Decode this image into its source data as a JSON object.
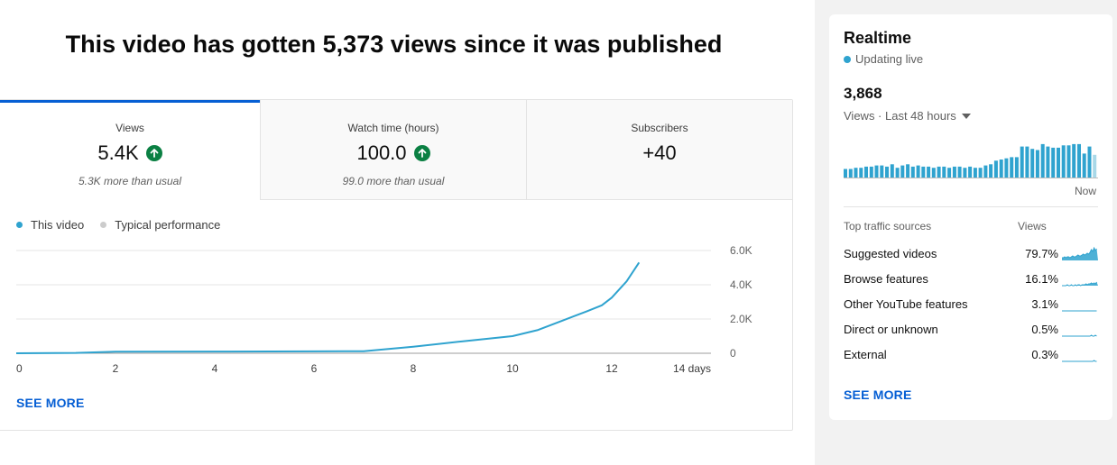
{
  "headline": "This video has gotten 5,373 views since it was published",
  "tabs": [
    {
      "label": "Views",
      "value": "5.4K",
      "sub": "5.3K more than usual",
      "trend": "up"
    },
    {
      "label": "Watch time (hours)",
      "value": "100.0",
      "sub": "99.0 more than usual",
      "trend": "up"
    },
    {
      "label": "Subscribers",
      "value": "+40",
      "sub": "",
      "trend": "none"
    }
  ],
  "legend": {
    "this_video": "This video",
    "typical": "Typical performance"
  },
  "colors": {
    "accent": "#065fd4",
    "series": "#2fa3cf",
    "typical": "#cccccc",
    "up": "#0b8043"
  },
  "chart_data": {
    "type": "line",
    "title": "",
    "xlabel": "",
    "ylabel": "",
    "x_ticks": [
      "0",
      "2",
      "4",
      "6",
      "8",
      "10",
      "12",
      "14 days"
    ],
    "y_ticks": [
      "6.0K",
      "4.0K",
      "2.0K",
      "0"
    ],
    "xlim": [
      0,
      14
    ],
    "ylim": [
      0,
      6000
    ],
    "grid": true,
    "legend_position": "top-left",
    "series": [
      {
        "name": "This video",
        "x": [
          0,
          1.2,
          2,
          4,
          6,
          7,
          8,
          9,
          10,
          10.5,
          11,
          11.5,
          11.8,
          12,
          12.3,
          12.55
        ],
        "y": [
          0,
          20,
          90,
          100,
          110,
          120,
          380,
          700,
          1000,
          1350,
          1900,
          2450,
          2800,
          3250,
          4200,
          5300
        ]
      }
    ]
  },
  "see_more": "SEE MORE",
  "realtime": {
    "title": "Realtime",
    "status": "Updating live",
    "count": "3,868",
    "range_label": "Views · Last 48 hours",
    "now_label": "Now",
    "bars": [
      8,
      8,
      9,
      9,
      10,
      10,
      11,
      11,
      10,
      12,
      9,
      11,
      12,
      10,
      11,
      10,
      10,
      9,
      10,
      10,
      9,
      10,
      10,
      9,
      10,
      9,
      9,
      11,
      12,
      15,
      16,
      17,
      18,
      18,
      27,
      27,
      25,
      24,
      29,
      27,
      26,
      26,
      28,
      28,
      29,
      29,
      21,
      27,
      20
    ],
    "table_headers": {
      "source": "Top traffic sources",
      "views": "Views"
    },
    "sources": [
      {
        "name": "Suggested videos",
        "pct": "79.7%",
        "spark": [
          3,
          3,
          4,
          3,
          4,
          4,
          3,
          4,
          5,
          4,
          4,
          5,
          6,
          5,
          5,
          6,
          7,
          6,
          7,
          8,
          7,
          9,
          12,
          10,
          14,
          11,
          13
        ]
      },
      {
        "name": "Browse features",
        "pct": "16.1%",
        "spark": [
          0,
          0,
          0,
          0,
          1,
          0,
          0,
          1,
          0,
          0,
          1,
          0,
          1,
          1,
          0,
          1,
          1,
          1,
          2,
          1,
          2,
          2,
          3,
          2,
          3,
          2,
          4
        ]
      },
      {
        "name": "Other YouTube features",
        "pct": "3.1%",
        "spark": [
          0,
          0,
          0,
          0,
          0,
          0,
          0,
          0,
          0,
          0,
          0,
          0,
          0,
          0,
          0,
          0,
          0,
          0,
          0,
          0,
          0,
          0,
          0,
          0,
          0,
          0,
          0
        ]
      },
      {
        "name": "Direct or unknown",
        "pct": "0.5%",
        "spark": [
          0,
          0,
          0,
          0,
          0,
          0,
          0,
          0,
          0,
          0,
          0,
          0,
          0,
          0,
          0,
          0,
          0,
          0,
          0,
          0,
          0,
          0,
          1,
          0,
          0,
          1,
          0
        ]
      },
      {
        "name": "External",
        "pct": "0.3%",
        "spark": [
          0,
          0,
          0,
          0,
          0,
          0,
          0,
          0,
          0,
          0,
          0,
          0,
          0,
          0,
          0,
          0,
          0,
          0,
          0,
          0,
          0,
          0,
          0,
          0,
          1,
          0,
          0
        ]
      }
    ],
    "see_more": "SEE MORE"
  }
}
